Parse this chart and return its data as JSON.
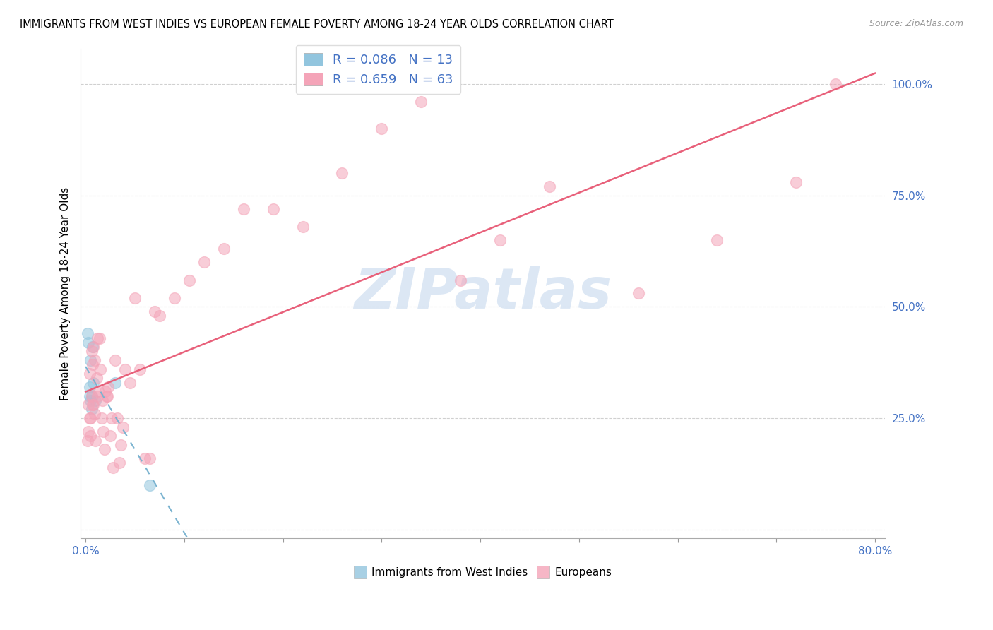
{
  "title": "IMMIGRANTS FROM WEST INDIES VS EUROPEAN FEMALE POVERTY AMONG 18-24 YEAR OLDS CORRELATION CHART",
  "source": "Source: ZipAtlas.com",
  "ylabel": "Female Poverty Among 18-24 Year Olds",
  "xlim": [
    0.0,
    0.8
  ],
  "ylim": [
    0.0,
    1.05
  ],
  "legend1_label": "R = 0.086   N = 13",
  "legend2_label": "R = 0.659   N = 63",
  "legend_label1": "Immigrants from West Indies",
  "legend_label2": "Europeans",
  "blue_color": "#92c5de",
  "pink_color": "#f4a4b8",
  "blue_line_color": "#7ab3d0",
  "pink_line_color": "#e8607a",
  "watermark": "ZIPatlas",
  "blue_x": [
    0.002,
    0.003,
    0.004,
    0.004,
    0.005,
    0.005,
    0.006,
    0.006,
    0.007,
    0.008,
    0.01,
    0.03,
    0.065
  ],
  "blue_y": [
    0.44,
    0.42,
    0.32,
    0.3,
    0.38,
    0.29,
    0.3,
    0.27,
    0.41,
    0.33,
    0.29,
    0.33,
    0.1
  ],
  "pink_x": [
    0.002,
    0.003,
    0.003,
    0.004,
    0.004,
    0.005,
    0.005,
    0.006,
    0.006,
    0.007,
    0.007,
    0.008,
    0.008,
    0.009,
    0.009,
    0.01,
    0.011,
    0.012,
    0.012,
    0.013,
    0.014,
    0.015,
    0.016,
    0.017,
    0.018,
    0.019,
    0.02,
    0.021,
    0.022,
    0.023,
    0.025,
    0.026,
    0.028,
    0.03,
    0.032,
    0.034,
    0.036,
    0.038,
    0.04,
    0.045,
    0.05,
    0.055,
    0.06,
    0.065,
    0.07,
    0.075,
    0.09,
    0.105,
    0.12,
    0.14,
    0.16,
    0.19,
    0.22,
    0.26,
    0.3,
    0.34,
    0.38,
    0.42,
    0.47,
    0.56,
    0.64,
    0.72,
    0.76
  ],
  "pink_y": [
    0.2,
    0.28,
    0.22,
    0.35,
    0.25,
    0.25,
    0.21,
    0.4,
    0.3,
    0.37,
    0.28,
    0.41,
    0.28,
    0.38,
    0.26,
    0.2,
    0.34,
    0.43,
    0.3,
    0.31,
    0.43,
    0.36,
    0.25,
    0.29,
    0.22,
    0.18,
    0.31,
    0.3,
    0.3,
    0.32,
    0.21,
    0.25,
    0.14,
    0.38,
    0.25,
    0.15,
    0.19,
    0.23,
    0.36,
    0.33,
    0.52,
    0.36,
    0.16,
    0.16,
    0.49,
    0.48,
    0.52,
    0.56,
    0.6,
    0.63,
    0.72,
    0.72,
    0.68,
    0.8,
    0.9,
    0.96,
    0.56,
    0.65,
    0.77,
    0.53,
    0.65,
    0.78,
    1.0
  ]
}
